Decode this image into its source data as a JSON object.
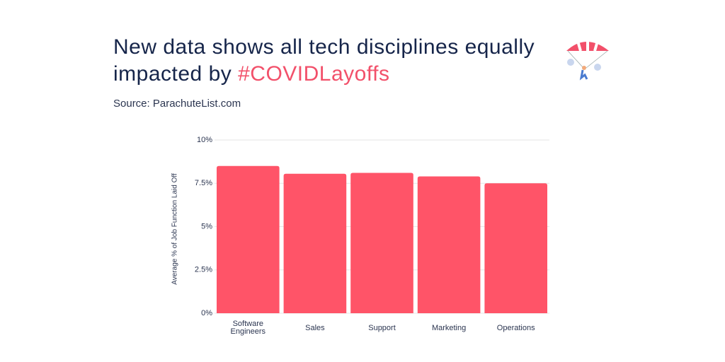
{
  "chart_data": {
    "type": "bar",
    "title_parts": [
      "New data shows all tech disciplines equally impacted by ",
      "#COVIDLayoffs"
    ],
    "subtitle": "Source: ParachuteList.com",
    "y_label": "Average % of Job Function Laid Off",
    "categories": [
      "Software Engineers",
      "Sales",
      "Support",
      "Marketing",
      "Operations"
    ],
    "values": [
      8.5,
      8.05,
      8.1,
      7.9,
      7.5
    ],
    "color": "#ff5468",
    "ylim": [
      0,
      10
    ],
    "yticks": [
      {
        "value": 0,
        "label": "0%"
      },
      {
        "value": 2.5,
        "label": "2.5%"
      },
      {
        "value": 5,
        "label": "5%"
      },
      {
        "value": 7.5,
        "label": "7.5%"
      },
      {
        "value": 10,
        "label": "10%"
      }
    ],
    "grid": true
  }
}
